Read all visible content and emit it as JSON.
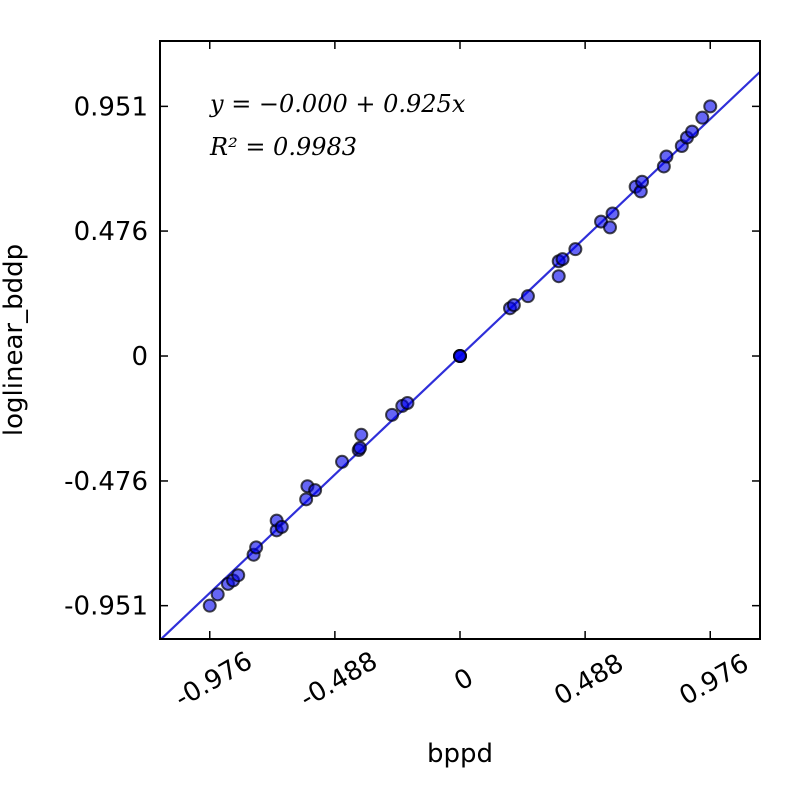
{
  "chart_data": {
    "type": "scatter",
    "title": "",
    "xlabel": "bppd",
    "ylabel": "loglinear_bddp",
    "xlim": [
      -1.17,
      1.17
    ],
    "ylim": [
      -1.078,
      1.2
    ],
    "xticks": [
      -0.976,
      -0.488,
      0,
      0.488,
      0.976
    ],
    "xtick_labels": [
      "-0.976",
      "-0.488",
      "0",
      "0.488",
      "0.976"
    ],
    "yticks": [
      -0.951,
      -0.476,
      0,
      0.476,
      0.951
    ],
    "ytick_labels": [
      "-0.951",
      "-0.476",
      "0",
      "0.476",
      "0.951"
    ],
    "grid": false,
    "fit": {
      "intercept": 0.0,
      "slope": 0.925
    },
    "annotation": {
      "equation": "y = −0.000 + 0.925x",
      "r2": "R² = 0.9983"
    },
    "points": [
      {
        "x": -0.976,
        "y": -0.951
      },
      {
        "x": -0.945,
        "y": -0.908
      },
      {
        "x": -0.905,
        "y": -0.868
      },
      {
        "x": -0.885,
        "y": -0.855
      },
      {
        "x": -0.865,
        "y": -0.835
      },
      {
        "x": -0.805,
        "y": -0.757
      },
      {
        "x": -0.795,
        "y": -0.729
      },
      {
        "x": -0.715,
        "y": -0.664
      },
      {
        "x": -0.715,
        "y": -0.627
      },
      {
        "x": -0.695,
        "y": -0.651
      },
      {
        "x": -0.6,
        "y": -0.546
      },
      {
        "x": -0.595,
        "y": -0.496
      },
      {
        "x": -0.565,
        "y": -0.511
      },
      {
        "x": -0.46,
        "y": -0.403
      },
      {
        "x": -0.395,
        "y": -0.358
      },
      {
        "x": -0.39,
        "y": -0.35
      },
      {
        "x": -0.385,
        "y": -0.3
      },
      {
        "x": -0.265,
        "y": -0.224
      },
      {
        "x": -0.225,
        "y": -0.19
      },
      {
        "x": -0.205,
        "y": -0.179
      },
      {
        "x": 0.0,
        "y": 0.0
      },
      {
        "x": 0.0,
        "y": 0.0
      },
      {
        "x": 0.0,
        "y": 0.0
      },
      {
        "x": 0.195,
        "y": 0.182
      },
      {
        "x": 0.21,
        "y": 0.194
      },
      {
        "x": 0.265,
        "y": 0.228
      },
      {
        "x": 0.385,
        "y": 0.304
      },
      {
        "x": 0.385,
        "y": 0.361
      },
      {
        "x": 0.4,
        "y": 0.369
      },
      {
        "x": 0.45,
        "y": 0.407
      },
      {
        "x": 0.55,
        "y": 0.512
      },
      {
        "x": 0.585,
        "y": 0.49
      },
      {
        "x": 0.595,
        "y": 0.543
      },
      {
        "x": 0.685,
        "y": 0.645
      },
      {
        "x": 0.705,
        "y": 0.627
      },
      {
        "x": 0.71,
        "y": 0.664
      },
      {
        "x": 0.795,
        "y": 0.722
      },
      {
        "x": 0.805,
        "y": 0.76
      },
      {
        "x": 0.865,
        "y": 0.8
      },
      {
        "x": 0.885,
        "y": 0.832
      },
      {
        "x": 0.905,
        "y": 0.855
      },
      {
        "x": 0.945,
        "y": 0.908
      },
      {
        "x": 0.976,
        "y": 0.951
      }
    ],
    "colors": {
      "marker_fill": "#0000ee",
      "marker_edge": "#000000",
      "fit_line": "#2f2fd9",
      "axes": "#000000"
    }
  }
}
